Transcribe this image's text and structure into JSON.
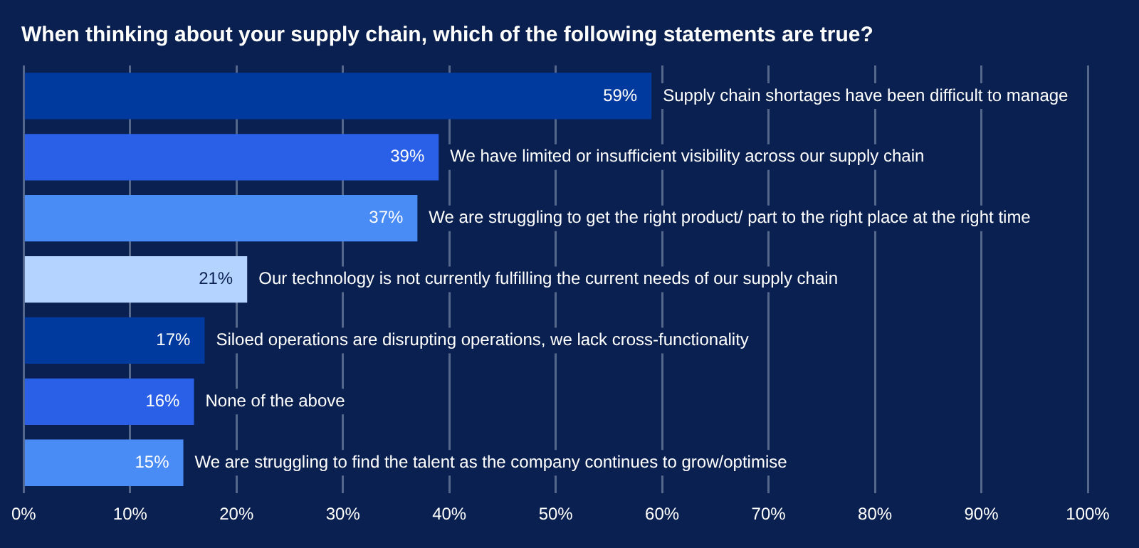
{
  "chart_data": {
    "type": "bar",
    "orientation": "horizontal",
    "title": "When thinking about your supply chain, which of the following statements are true?",
    "categories": [
      "Supply chain shortages have been difficult to manage",
      "We have limited or insufficient visibility across our supply chain",
      "We are struggling to get the right product/ part to the right place at the right time",
      "Our technology is not currently fulfilling the current needs of our supply chain",
      "Siloed operations are disrupting operations, we lack cross-functionality",
      "None of the above",
      "We are struggling to find the talent as the company continues to grow/optimise"
    ],
    "values": [
      59,
      39,
      37,
      21,
      17,
      16,
      15
    ],
    "value_labels": [
      "59%",
      "39%",
      "37%",
      "21%",
      "17%",
      "16%",
      "15%"
    ],
    "colors": [
      "#003a9e",
      "#2a5fe8",
      "#4a8cf5",
      "#b5d3ff",
      "#003a9e",
      "#2a5fe8",
      "#4a8cf5"
    ],
    "xlim": [
      0,
      100
    ],
    "xticks": [
      {
        "value": 0,
        "label": "0%"
      },
      {
        "value": 10,
        "label": "10%"
      },
      {
        "value": 20,
        "label": "20%"
      },
      {
        "value": 30,
        "label": "30%"
      },
      {
        "value": 40,
        "label": "40%"
      },
      {
        "value": 50,
        "label": "50%"
      },
      {
        "value": 60,
        "label": "60%"
      },
      {
        "value": 70,
        "label": "70%"
      },
      {
        "value": 80,
        "label": "80%"
      },
      {
        "value": 90,
        "label": "90%"
      },
      {
        "value": 100,
        "label": "100%"
      }
    ],
    "grid": "x",
    "legend": false,
    "tick_labels": "x"
  }
}
